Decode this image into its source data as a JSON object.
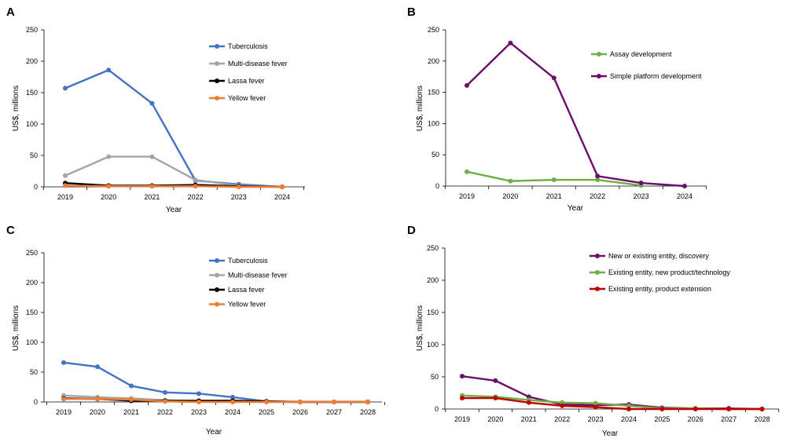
{
  "chart_data": [
    {
      "panel": "A",
      "type": "line",
      "xlabel": "Year",
      "ylabel": "US$, millions",
      "ylim": [
        0,
        250
      ],
      "yticks": [
        0,
        50,
        100,
        150,
        200,
        250
      ],
      "categories": [
        "2019",
        "2020",
        "2021",
        "2022",
        "2023",
        "2024"
      ],
      "grid": false,
      "legend_position": "top-right",
      "series": [
        {
          "name": "Tuberculosis",
          "color": "#4472C4",
          "values": [
            157,
            186,
            133,
            10,
            4,
            0
          ]
        },
        {
          "name": "Multi-disease fever",
          "color": "#A5A5A5",
          "values": [
            18,
            48,
            48,
            11,
            2,
            0
          ]
        },
        {
          "name": "Lassa fever",
          "color": "#000000",
          "values": [
            6,
            2,
            2,
            3,
            1,
            0
          ]
        },
        {
          "name": "Yellow fever",
          "color": "#ED7D31",
          "values": [
            2,
            1,
            1,
            1,
            0,
            0
          ]
        }
      ]
    },
    {
      "panel": "B",
      "type": "line",
      "xlabel": "Year",
      "ylabel": "US$, millions",
      "ylim": [
        0,
        250
      ],
      "yticks": [
        0,
        50,
        100,
        150,
        200,
        250
      ],
      "categories": [
        "2019",
        "2020",
        "2021",
        "2022",
        "2023",
        "2024"
      ],
      "grid": false,
      "legend_position": "top-right",
      "series": [
        {
          "name": "Assay development",
          "color": "#70AD47",
          "values": [
            23,
            8,
            10,
            10,
            1,
            null
          ]
        },
        {
          "name": "Simple platform development",
          "color": "#6B0F6B",
          "values": [
            161,
            229,
            173,
            16,
            5,
            0
          ]
        }
      ]
    },
    {
      "panel": "C",
      "type": "line",
      "xlabel": "Year",
      "ylabel": "US$, millions",
      "ylim": [
        0,
        250
      ],
      "yticks": [
        0,
        50,
        100,
        150,
        200,
        250
      ],
      "categories": [
        "2019",
        "2020",
        "2021",
        "2022",
        "2023",
        "2024",
        "2025",
        "2026",
        "2027",
        "2028"
      ],
      "grid": false,
      "legend_position": "top-right",
      "series": [
        {
          "name": "Tuberculosis",
          "color": "#4472C4",
          "values": [
            66,
            59,
            27,
            16,
            14,
            8,
            1,
            0,
            0,
            0
          ]
        },
        {
          "name": "Multi-disease fever",
          "color": "#A5A5A5",
          "values": [
            11,
            8,
            6,
            3,
            1,
            1,
            0,
            0,
            0,
            0
          ]
        },
        {
          "name": "Lassa fever",
          "color": "#000000",
          "values": [
            6,
            5,
            2,
            2,
            2,
            2,
            1,
            0,
            0,
            0
          ]
        },
        {
          "name": "Yellow fever",
          "color": "#ED7D31",
          "values": [
            5,
            5,
            4,
            1,
            0,
            0,
            0,
            0,
            0,
            0
          ]
        }
      ]
    },
    {
      "panel": "D",
      "type": "line",
      "xlabel": "Year",
      "ylabel": "US$, millions",
      "ylim": [
        0,
        250
      ],
      "yticks": [
        0,
        50,
        100,
        150,
        200,
        250
      ],
      "categories": [
        "2019",
        "2020",
        "2021",
        "2022",
        "2023",
        "2024",
        "2025",
        "2026",
        "2027",
        "2028"
      ],
      "grid": false,
      "legend_position": "top-right",
      "series": [
        {
          "name": "New or existing entity, discovery",
          "color": "#6B0F6B",
          "values": [
            51,
            44,
            19,
            7,
            6,
            7,
            2,
            1,
            1,
            0
          ]
        },
        {
          "name": "Existing entity, new product/technology",
          "color": "#70AD47",
          "values": [
            21,
            19,
            14,
            10,
            9,
            5,
            1,
            1,
            0,
            0
          ]
        },
        {
          "name": "Existing entity, product extension",
          "color": "#C00000",
          "values": [
            17,
            17,
            10,
            5,
            3,
            0,
            0,
            0,
            0,
            0
          ]
        }
      ]
    }
  ]
}
